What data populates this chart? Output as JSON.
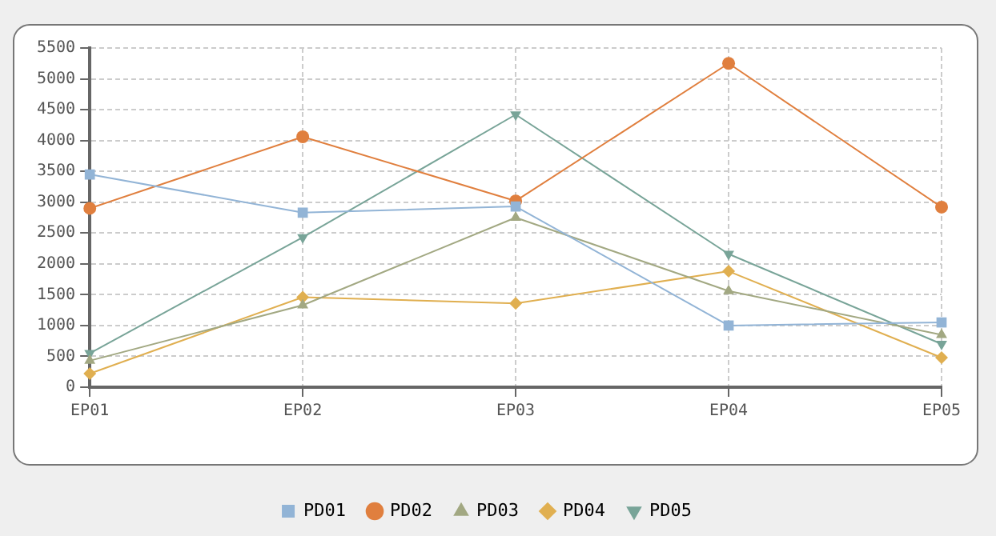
{
  "chart_data": {
    "type": "line",
    "categories": [
      "EP01",
      "EP02",
      "EP03",
      "EP04",
      "EP05"
    ],
    "series": [
      {
        "name": "PD01",
        "color": "#92b4d6",
        "marker": "square",
        "values": [
          3450,
          2830,
          2930,
          1000,
          1050
        ]
      },
      {
        "name": "PD02",
        "color": "#e07f3e",
        "marker": "circle",
        "values": [
          2900,
          4060,
          3020,
          5250,
          2920
        ]
      },
      {
        "name": "PD03",
        "color": "#a2a882",
        "marker": "triangle",
        "values": [
          430,
          1330,
          2750,
          1560,
          850
        ]
      },
      {
        "name": "PD04",
        "color": "#e0af50",
        "marker": "diamond",
        "values": [
          220,
          1460,
          1360,
          1880,
          480
        ]
      },
      {
        "name": "PD05",
        "color": "#78a498",
        "marker": "triangle-down",
        "values": [
          550,
          2430,
          4420,
          2160,
          700
        ]
      }
    ],
    "ylim": [
      0,
      5500
    ],
    "yticks": [
      0,
      500,
      1000,
      1500,
      2000,
      2500,
      3000,
      3500,
      4000,
      4500,
      5000,
      5500
    ],
    "grid": true,
    "legend": "bottom",
    "line_style": "solid"
  }
}
